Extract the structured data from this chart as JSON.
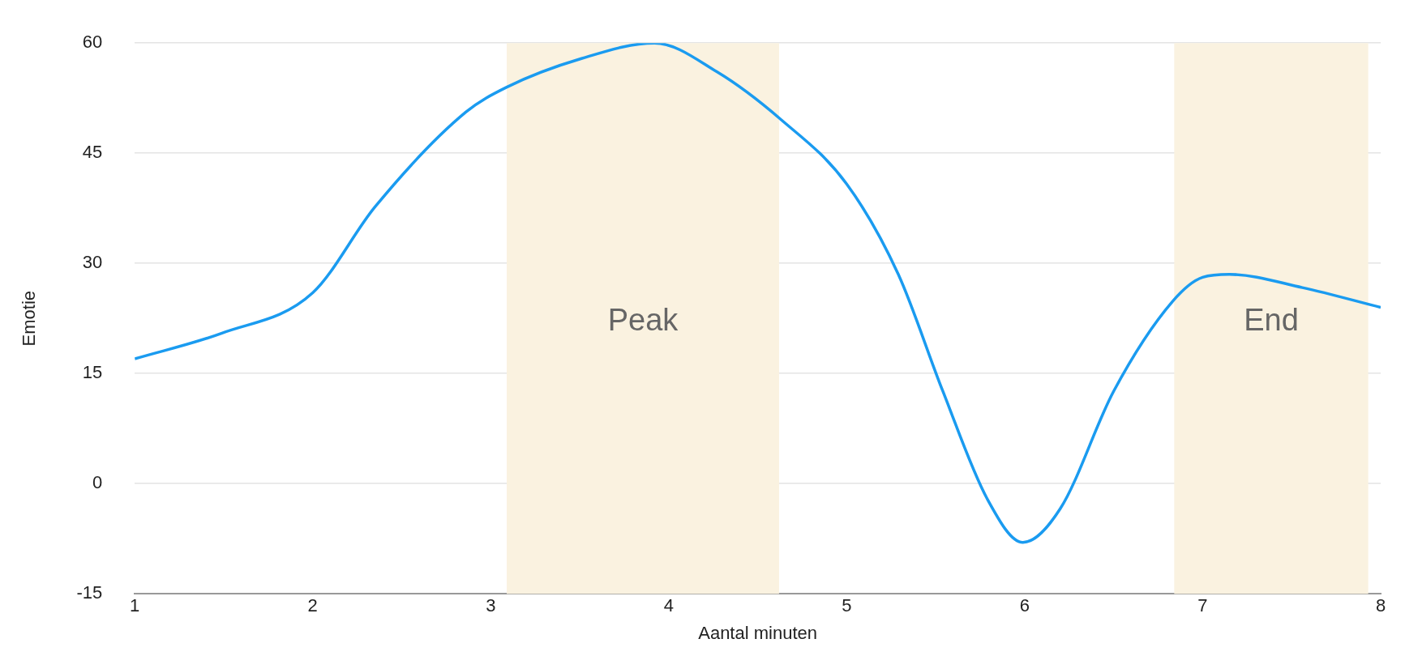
{
  "chart_data": {
    "type": "line",
    "xlabel": "Aantal minuten",
    "ylabel": "Emotie",
    "xlim": [
      1,
      8
    ],
    "xticks": [
      1,
      2,
      3,
      4,
      5,
      6,
      7,
      8
    ],
    "ylim": [
      -15,
      60
    ],
    "yticks": [
      -15,
      0,
      15,
      30,
      45,
      60
    ],
    "grid": "y",
    "legend": false,
    "marker": "none",
    "line_style": "solid",
    "bands": [
      {
        "axis": "x",
        "from": 3.09,
        "to": 4.62,
        "label": "Peak",
        "color": "#faf2e0"
      },
      {
        "axis": "x",
        "from": 6.84,
        "to": 7.93,
        "label": "End",
        "color": "#faf2e0"
      }
    ],
    "series": [
      {
        "color": "#1a9bf0",
        "x": [
          1,
          1.49,
          2,
          2.35,
          2.86,
          3.09,
          3.51,
          3.92,
          4.27,
          4.63,
          5,
          5.29,
          5.54,
          5.79,
          5.99,
          6.2,
          6.5,
          6.83,
          7,
          7.15,
          7.56,
          8
        ],
        "values": [
          17,
          20.5,
          26,
          37.7,
          50.6,
          54,
          57.9,
          60,
          56.1,
          49.6,
          40.8,
          28.5,
          12.6,
          -2.1,
          -8,
          -3.4,
          12.6,
          24.8,
          28.1,
          28.5,
          26.7,
          24
        ]
      }
    ]
  }
}
